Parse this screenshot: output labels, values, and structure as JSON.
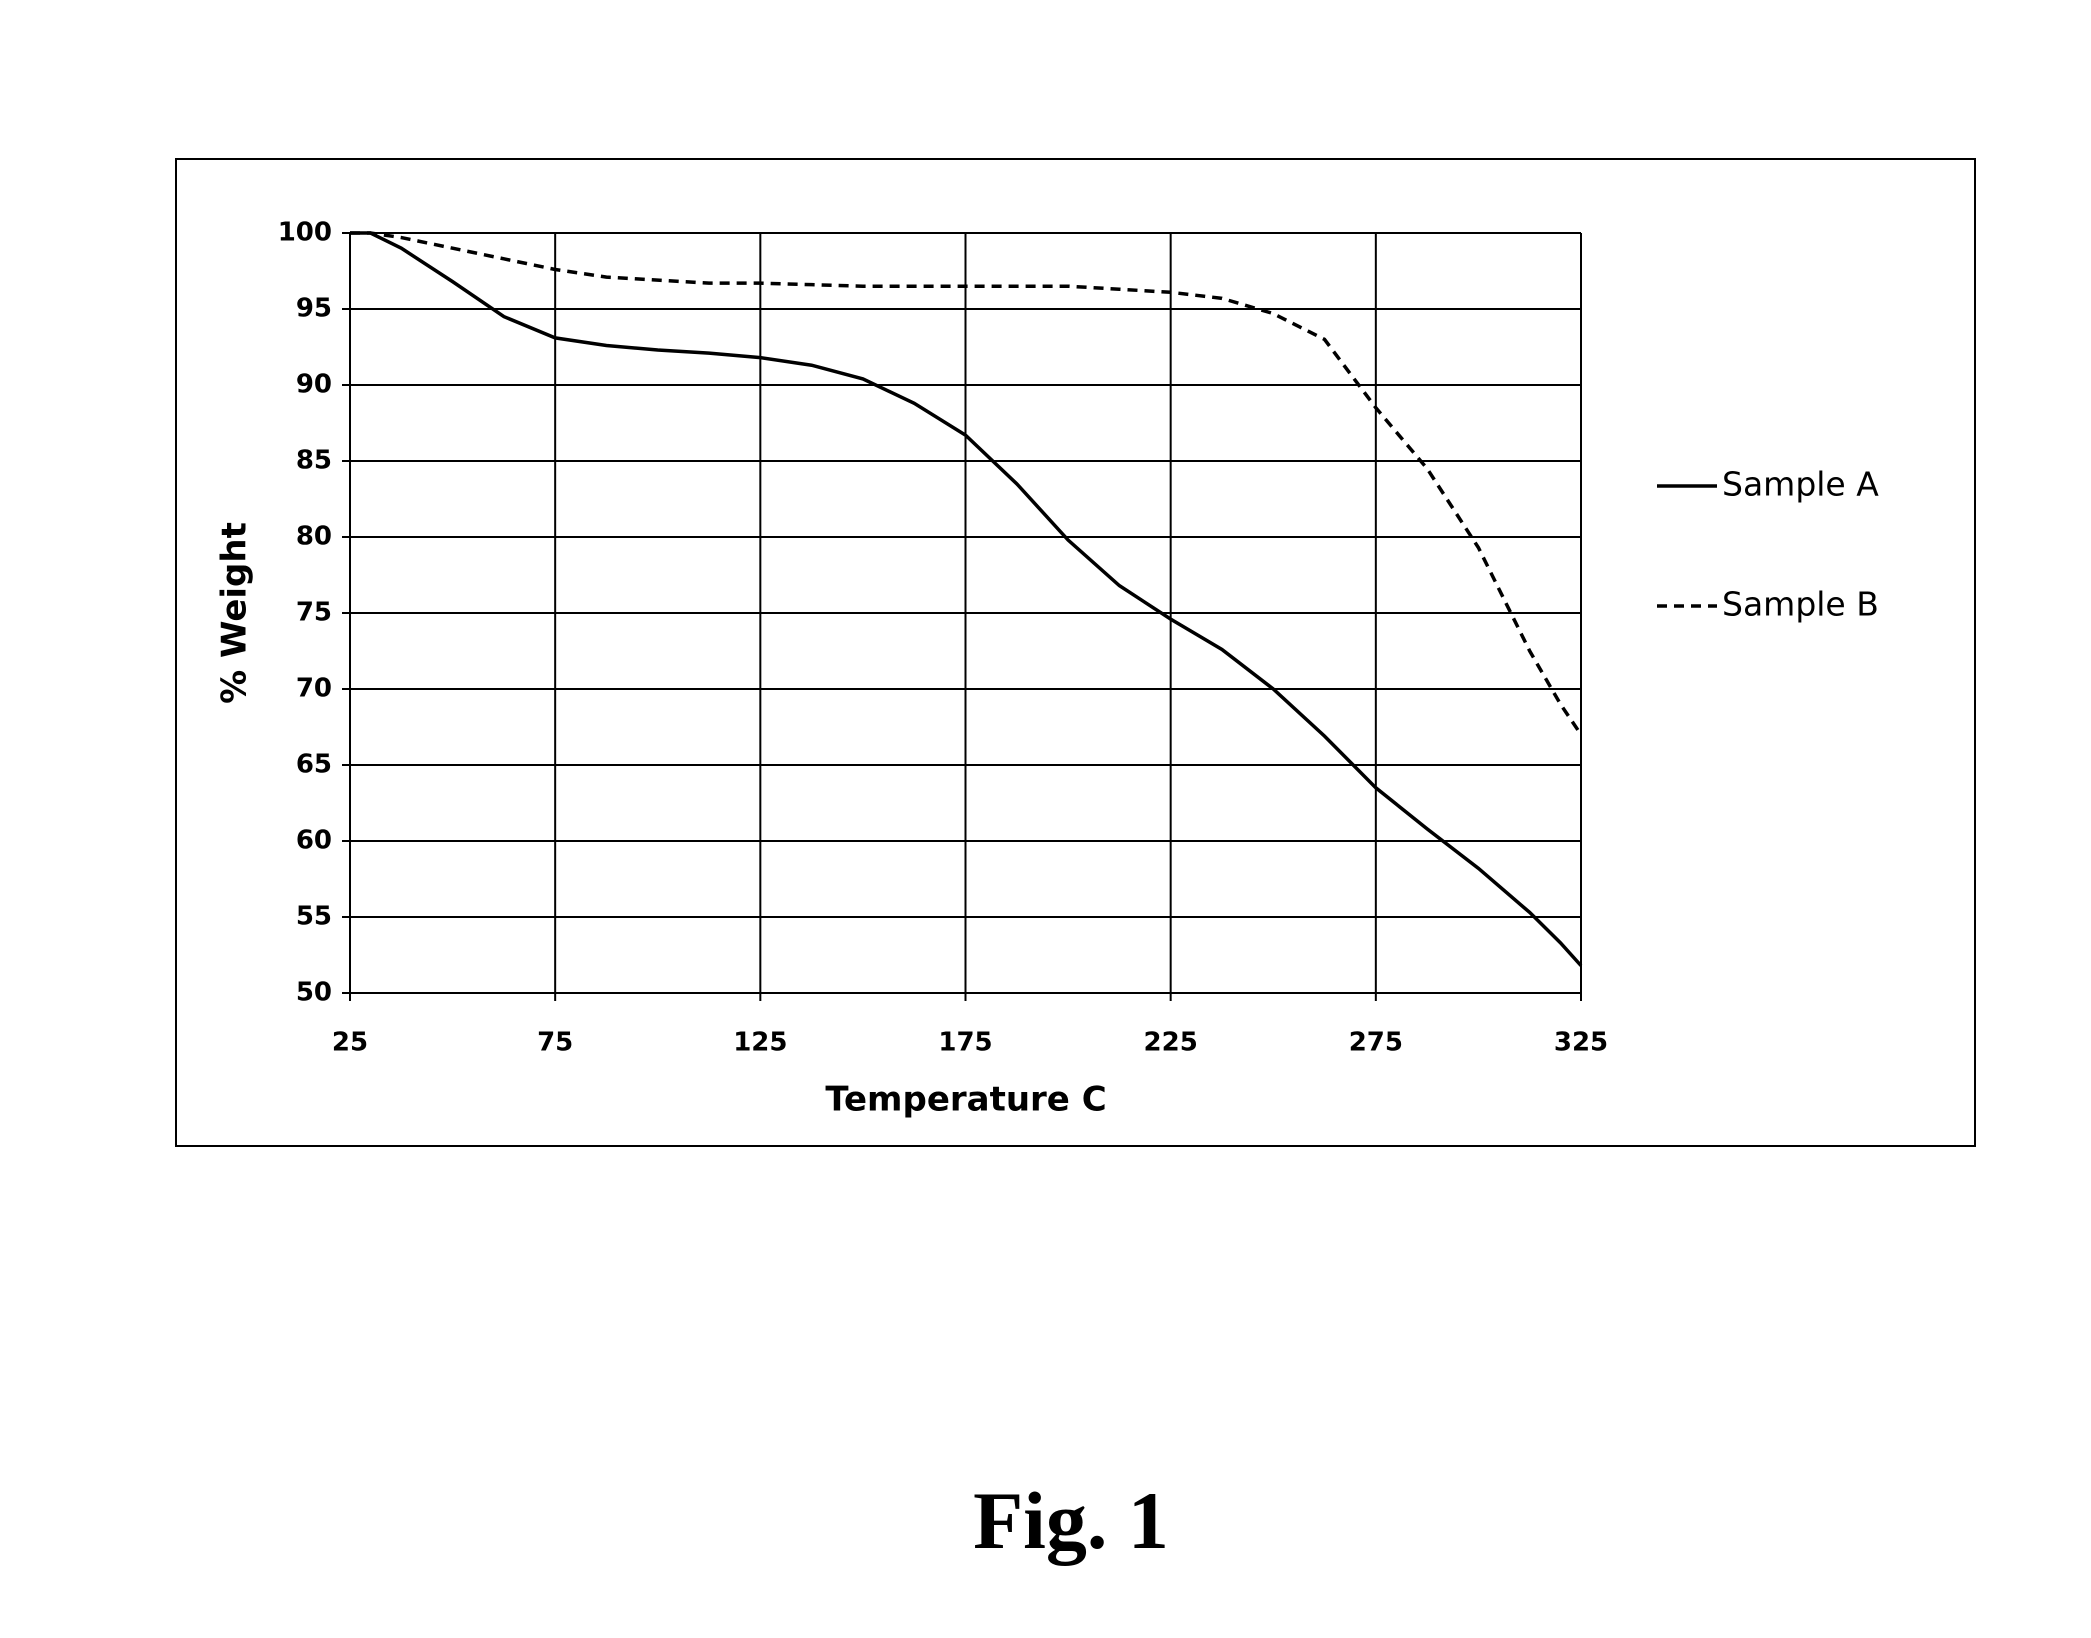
{
  "chart_data": {
    "type": "line",
    "xlabel": "Temperature C",
    "ylabel": "% Weight",
    "x": [
      25,
      30,
      37.5,
      50,
      62.5,
      75,
      87.5,
      100,
      112.5,
      125,
      137.5,
      150,
      162.5,
      175,
      187.5,
      200,
      212.5,
      225,
      237.5,
      250,
      262.5,
      275,
      287.5,
      300,
      312.5,
      320,
      325
    ],
    "series": [
      {
        "name": "Sample A",
        "color": "#000000",
        "line_style": "solid",
        "values": [
          100,
          100,
          99,
          96.8,
          94.5,
          93.1,
          92.6,
          92.3,
          92.1,
          91.8,
          91.3,
          90.4,
          88.8,
          86.7,
          83.5,
          79.8,
          76.8,
          74.6,
          72.6,
          70,
          66.9,
          63.5,
          60.8,
          58.2,
          55.3,
          53.3,
          51.8
        ]
      },
      {
        "name": "Sample B",
        "color": "#000000",
        "line_style": "dashed",
        "values": [
          100,
          100,
          99.7,
          99,
          98.3,
          97.6,
          97.1,
          96.9,
          96.7,
          96.7,
          96.6,
          96.5,
          96.5,
          96.5,
          96.5,
          96.5,
          96.3,
          96.1,
          95.7,
          94.7,
          93,
          88.5,
          84.5,
          79.3,
          72.5,
          69,
          67
        ]
      }
    ],
    "xlim": [
      25,
      325
    ],
    "xticks": [
      25,
      75,
      125,
      175,
      225,
      275,
      325
    ],
    "ylim": [
      50,
      100
    ],
    "yticks": [
      50,
      55,
      60,
      65,
      70,
      75,
      80,
      85,
      90,
      95,
      100
    ],
    "grid": true,
    "legend": "right"
  },
  "figure_label": "Fig. 1"
}
